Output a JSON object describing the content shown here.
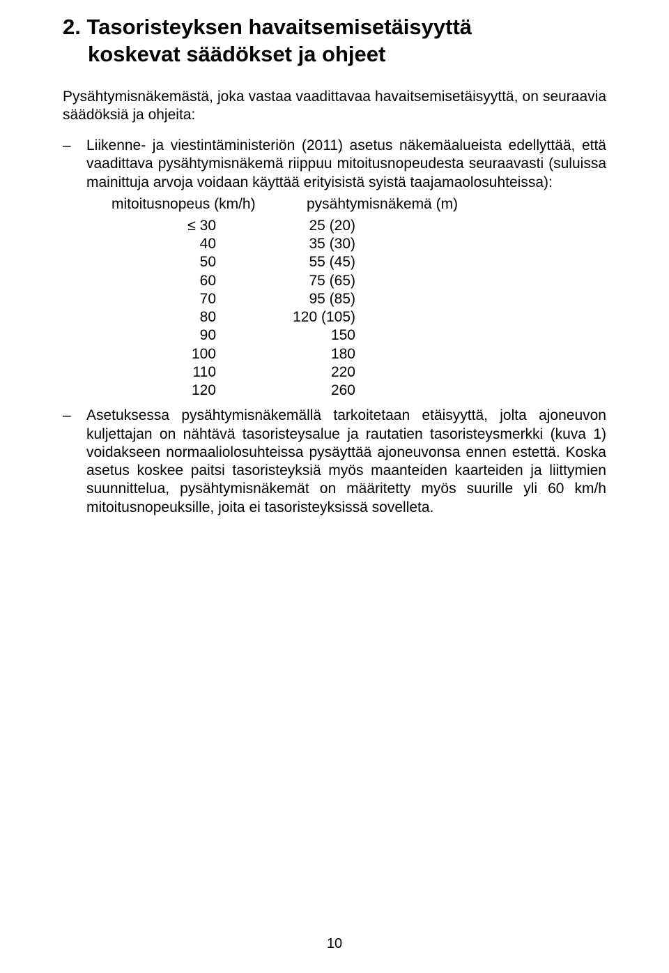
{
  "heading": {
    "line1": "2. Tasoristeyksen havaitsemisetäisyyttä",
    "line2": "koskevat säädökset ja ohjeet"
  },
  "intro": "Pysähtymisnäkemästä, joka vastaa vaadittavaa havaitsemisetäisyyttä, on seuraavia säädöksiä ja ohjeita:",
  "bullet1": {
    "dash": "–",
    "text": "Liikenne- ja viestintäministeriön (2011) asetus näkemäalueista edellyttää, että vaadittava pysähtymisnäkemä riippuu mitoitusnopeudesta seuraavasti (suluissa mainittuja arvoja voidaan käyttää erityisistä syistä taajamaolosuhteissa):"
  },
  "table": {
    "header_left": "mitoitusnopeus (km/h)",
    "header_right": "pysähtymisnäkemä (m)",
    "rows": [
      {
        "speed": "≤ 30",
        "dist": "25 (20)"
      },
      {
        "speed": "40",
        "dist": "35 (30)"
      },
      {
        "speed": "50",
        "dist": "55 (45)"
      },
      {
        "speed": "60",
        "dist": "75 (65)"
      },
      {
        "speed": "70",
        "dist": "95 (85)"
      },
      {
        "speed": "80",
        "dist": "120 (105)"
      },
      {
        "speed": "90",
        "dist": "150"
      },
      {
        "speed": "100",
        "dist": "180"
      },
      {
        "speed": "110",
        "dist": "220"
      },
      {
        "speed": "120",
        "dist": "260"
      }
    ]
  },
  "bullet2": {
    "dash": "–",
    "text": "Asetuksessa pysähtymisnäkemällä tarkoitetaan etäisyyttä, jolta ajoneuvon kuljettajan on nähtävä tasoristeysalue ja rautatien tasoristeysmerkki (kuva 1) voidakseen normaaliolosuhteissa pysäyttää ajoneuvonsa ennen estettä. Koska asetus koskee paitsi tasoristeyksiä myös maanteiden kaarteiden ja liittymien suunnittelua, pysähtymisnäkemät on määritetty myös suurille yli 60 km/h mitoitusnopeuksille, joita ei tasoristeyksissä sovelleta."
  },
  "page_number": "10"
}
